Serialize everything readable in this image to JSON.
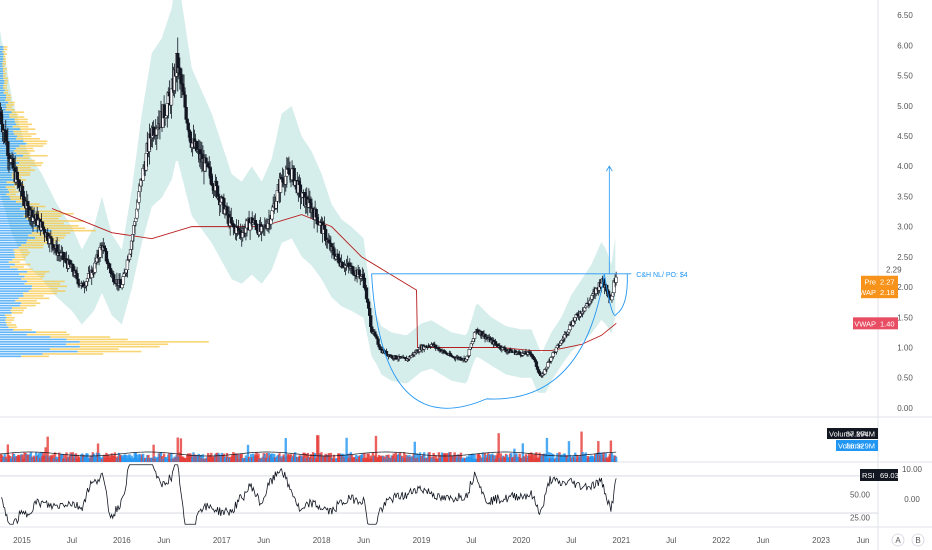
{
  "chart_data": [
    {
      "type": "candlestick",
      "panel": "price",
      "ylim": [
        -0.15,
        6.75
      ],
      "y_ticks": [
        "0.00",
        "0.50",
        "1.00",
        "1.50",
        "2.00",
        "2.50",
        "3.00",
        "3.50",
        "4.00",
        "4.50",
        "5.00",
        "5.50",
        "6.00",
        "6.50"
      ],
      "y_tick_values": [
        0,
        0.5,
        1.0,
        1.5,
        2.0,
        2.5,
        3.0,
        3.5,
        4.0,
        4.5,
        5.0,
        5.5,
        6.0,
        6.5
      ],
      "x_ticks": [
        {
          "t": 2015.0,
          "label": "2015"
        },
        {
          "t": 2015.5,
          "label": "Jul"
        },
        {
          "t": 2016.0,
          "label": "2016"
        },
        {
          "t": 2016.42,
          "label": "Jun"
        },
        {
          "t": 2017.0,
          "label": "2017"
        },
        {
          "t": 2017.42,
          "label": "Jun"
        },
        {
          "t": 2018.0,
          "label": "2018"
        },
        {
          "t": 2018.42,
          "label": "Jun"
        },
        {
          "t": 2019.0,
          "label": "2019"
        },
        {
          "t": 2019.5,
          "label": "Jul"
        },
        {
          "t": 2020.0,
          "label": "2020"
        },
        {
          "t": 2020.5,
          "label": "Jul"
        },
        {
          "t": 2021.0,
          "label": "2021"
        },
        {
          "t": 2021.5,
          "label": "Jul"
        },
        {
          "t": 2022.0,
          "label": "2022"
        },
        {
          "t": 2022.42,
          "label": "Jun"
        },
        {
          "t": 2023.0,
          "label": "2023"
        },
        {
          "t": 2023.42,
          "label": "Jun"
        }
      ],
      "xlim": [
        2014.78,
        2023.57
      ],
      "price_path": [
        [
          2014.78,
          4.9
        ],
        [
          2014.9,
          4.0
        ],
        [
          2015.05,
          3.3
        ],
        [
          2015.2,
          3.0
        ],
        [
          2015.35,
          2.6
        ],
        [
          2015.5,
          2.3
        ],
        [
          2015.6,
          2.0
        ],
        [
          2015.72,
          2.3
        ],
        [
          2015.8,
          2.7
        ],
        [
          2015.9,
          2.2
        ],
        [
          2016.0,
          2.0
        ],
        [
          2016.1,
          2.8
        ],
        [
          2016.2,
          3.8
        ],
        [
          2016.3,
          4.6
        ],
        [
          2016.4,
          4.8
        ],
        [
          2016.5,
          5.2
        ],
        [
          2016.55,
          5.7
        ],
        [
          2016.62,
          5.1
        ],
        [
          2016.7,
          4.4
        ],
        [
          2016.8,
          4.1
        ],
        [
          2016.9,
          3.8
        ],
        [
          2017.0,
          3.4
        ],
        [
          2017.1,
          3.0
        ],
        [
          2017.2,
          2.9
        ],
        [
          2017.3,
          3.1
        ],
        [
          2017.4,
          2.9
        ],
        [
          2017.5,
          3.2
        ],
        [
          2017.6,
          3.8
        ],
        [
          2017.7,
          3.9
        ],
        [
          2017.8,
          3.5
        ],
        [
          2017.9,
          3.3
        ],
        [
          2018.0,
          3.0
        ],
        [
          2018.1,
          2.6
        ],
        [
          2018.2,
          2.4
        ],
        [
          2018.3,
          2.3
        ],
        [
          2018.42,
          2.15
        ],
        [
          2018.5,
          1.3
        ],
        [
          2018.6,
          0.95
        ],
        [
          2018.7,
          0.85
        ],
        [
          2018.85,
          0.8
        ],
        [
          2019.0,
          1.0
        ],
        [
          2019.1,
          1.05
        ],
        [
          2019.3,
          0.85
        ],
        [
          2019.45,
          0.8
        ],
        [
          2019.55,
          1.3
        ],
        [
          2019.7,
          1.1
        ],
        [
          2019.85,
          0.95
        ],
        [
          2020.0,
          0.9
        ],
        [
          2020.1,
          0.9
        ],
        [
          2020.2,
          0.5
        ],
        [
          2020.3,
          0.85
        ],
        [
          2020.4,
          1.1
        ],
        [
          2020.5,
          1.4
        ],
        [
          2020.6,
          1.6
        ],
        [
          2020.7,
          1.8
        ],
        [
          2020.8,
          2.1
        ],
        [
          2020.85,
          2.0
        ],
        [
          2020.9,
          1.8
        ],
        [
          2020.95,
          2.25
        ]
      ],
      "vwap_path": [
        [
          2015.3,
          3.3
        ],
        [
          2015.6,
          3.1
        ],
        [
          2015.9,
          2.9
        ],
        [
          2016.3,
          2.8
        ],
        [
          2016.7,
          3.0
        ],
        [
          2017.0,
          3.0
        ],
        [
          2017.4,
          3.0
        ],
        [
          2017.8,
          3.2
        ],
        [
          2018.1,
          3.0
        ],
        [
          2018.4,
          2.5
        ],
        [
          2018.7,
          2.2
        ],
        [
          2018.95,
          1.95
        ],
        [
          2018.96,
          1.0
        ],
        [
          2019.2,
          1.0
        ],
        [
          2019.5,
          1.0
        ],
        [
          2019.8,
          1.0
        ],
        [
          2020.1,
          0.95
        ],
        [
          2020.3,
          0.95
        ],
        [
          2020.6,
          1.05
        ],
        [
          2020.8,
          1.2
        ],
        [
          2020.95,
          1.4
        ]
      ],
      "band_half_width": 0.8,
      "cup_handle": {
        "label": "C&H NL/ PO: $4",
        "rim_left": [
          2018.5,
          2.22
        ],
        "rim_right": [
          2021.1,
          2.22
        ],
        "cup_bottom": [
          2019.65,
          0.15
        ],
        "handle_bottom": [
          2020.95,
          1.55
        ],
        "target": [
          2020.88,
          4.0
        ],
        "target_base": [
          2020.88,
          2.22
        ]
      },
      "price_labels": [
        {
          "name": "last-price",
          "text": "2.29",
          "value": 2.29,
          "color": "#ffffff",
          "text_color": "#131722"
        },
        {
          "name": "pre-price",
          "text": "Pre",
          "value_text": "2.27",
          "value": 2.27,
          "color": "#f7931a"
        },
        {
          "name": "vwap-price",
          "text": "VWAP",
          "value_text": "2.18",
          "value": 2.18,
          "color": "#f7931a"
        },
        {
          "name": "vwap-long",
          "text": "VWAP",
          "value_text": "1.40",
          "value": 1.4,
          "color": "#e84d63"
        }
      ],
      "colors": {
        "candle": "#131722",
        "band": "#b2dfdb",
        "vwap": "#b71c1c",
        "cup": "#2196f3",
        "profile_blue": "#2196f3",
        "profile_yellow": "#f7c744",
        "profile_orange": "#f7931a"
      }
    },
    {
      "type": "bar",
      "panel": "volume",
      "legend": [
        {
          "name": "Volume MA",
          "value": "37.274M",
          "color": "#131722"
        },
        {
          "name": "Volume",
          "value": "36.329M",
          "color": "#2196f3"
        }
      ],
      "colors": {
        "up": "#2196f3",
        "down": "#e53935",
        "ma": "#131722"
      }
    },
    {
      "type": "line",
      "panel": "rsi",
      "name": "RSI",
      "value": "69.03",
      "ylim": [
        15,
        85
      ],
      "y_ticks": [
        "50.00",
        "25.00"
      ],
      "y_tick_values": [
        50,
        25
      ],
      "upper_band": 70,
      "lower_band": 30,
      "right_axis_labels": [
        "10.00",
        "0.00"
      ],
      "colors": {
        "line": "#131722",
        "band": "#d1d4dc"
      }
    }
  ],
  "scale_buttons": {
    "auto": "A",
    "log": "B"
  }
}
